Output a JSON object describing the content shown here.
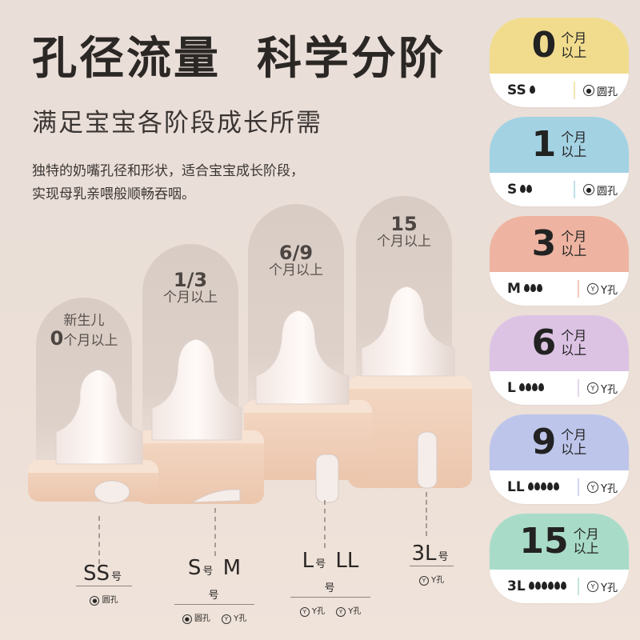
{
  "header": {
    "title": "孔径流量  科学分阶",
    "subtitle": "满足宝宝各阶段成长所需",
    "description_lines": [
      "独特的奶嘴孔径和形状，适合宝宝成长阶段，",
      "实现母乳亲喂般顺畅吞咽。"
    ]
  },
  "stages": [
    {
      "line1": "新生儿",
      "big": "0",
      "unit": "个月以上"
    },
    {
      "big": "1/3",
      "unit": "个月以上"
    },
    {
      "big": "6/9",
      "unit": "个月以上"
    },
    {
      "big": "15",
      "unit": "个月以上"
    }
  ],
  "bottom_labels": [
    {
      "sizes": [
        {
          "s": "SS",
          "h": "号"
        }
      ],
      "holes": [
        {
          "icon": "round-hole-icon",
          "t": "圆孔"
        }
      ]
    },
    {
      "sizes": [
        {
          "s": "S",
          "h": "号"
        },
        {
          "s": "M",
          "h": "号"
        }
      ],
      "holes": [
        {
          "icon": "round-hole-icon",
          "t": "圆孔"
        },
        {
          "icon": "y-hole-icon",
          "t": "Y孔"
        }
      ]
    },
    {
      "sizes": [
        {
          "s": "L",
          "h": "号"
        },
        {
          "s": "LL",
          "h": "号"
        }
      ],
      "holes": [
        {
          "icon": "y-hole-icon",
          "t": "Y孔"
        },
        {
          "icon": "y-hole-icon",
          "t": "Y孔"
        }
      ]
    },
    {
      "sizes": [
        {
          "s": "3L",
          "h": "号"
        }
      ],
      "holes": [
        {
          "icon": "y-hole-icon",
          "t": "Y孔"
        }
      ]
    }
  ],
  "cards": [
    {
      "num": "0",
      "unit1": "个月",
      "unit2": "以上",
      "size": "SS",
      "drops": 1,
      "hole": "圆孔",
      "hole_icon": "round-hole-icon",
      "color": "#f1dc8e"
    },
    {
      "num": "1",
      "unit1": "个月",
      "unit2": "以上",
      "size": "S",
      "drops": 2,
      "hole": "圆孔",
      "hole_icon": "round-hole-icon",
      "color": "#a3d2e3"
    },
    {
      "num": "3",
      "unit1": "个月",
      "unit2": "以上",
      "size": "M",
      "drops": 3,
      "hole": "Y孔",
      "hole_icon": "y-hole-icon",
      "color": "#eeb4a1"
    },
    {
      "num": "6",
      "unit1": "个月",
      "unit2": "以上",
      "size": "L",
      "drops": 4,
      "hole": "Y孔",
      "hole_icon": "y-hole-icon",
      "color": "#dcc3e4"
    },
    {
      "num": "9",
      "unit1": "个月",
      "unit2": "以上",
      "size": "LL",
      "drops": 5,
      "hole": "Y孔",
      "hole_icon": "y-hole-icon",
      "color": "#bdc5ea"
    },
    {
      "num": "15",
      "unit1": "个月",
      "unit2": "以上",
      "size": "3L",
      "drops": 6,
      "hole": "Y孔",
      "hole_icon": "y-hole-icon",
      "color": "#a9dcc8"
    }
  ]
}
